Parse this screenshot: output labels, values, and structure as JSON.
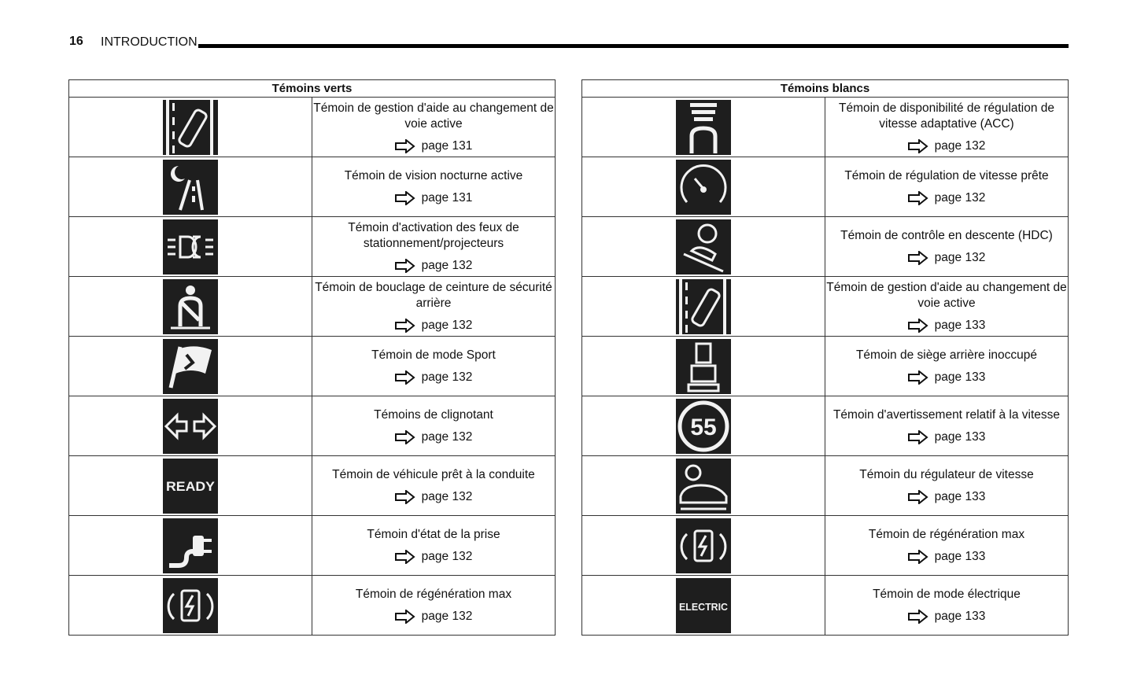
{
  "header": {
    "page_number": "16",
    "section": "INTRODUCTION"
  },
  "tables": [
    {
      "title": "Témoins verts",
      "rows": [
        {
          "icon": "lane-change-assist-icon",
          "text": "Témoin de gestion d'aide au changement de voie active",
          "page": "page 131"
        },
        {
          "icon": "night-vision-icon",
          "text": "Témoin de vision nocturne active",
          "page": "page 131"
        },
        {
          "icon": "parking-lights-icon",
          "text": "Témoin d'activation des feux de stationnement/projecteurs",
          "page": "page 132"
        },
        {
          "icon": "rear-seatbelt-icon",
          "text": "Témoin de bouclage de ceinture de sécurité arrière",
          "page": "page 132"
        },
        {
          "icon": "sport-mode-flag-icon",
          "text": "Témoin de mode Sport",
          "page": "page 132"
        },
        {
          "icon": "turn-signal-icon",
          "text": "Témoins de clignotant",
          "page": "page 132"
        },
        {
          "icon": "ready-icon",
          "label": "READY",
          "text": "Témoin de véhicule prêt à la conduite",
          "page": "page 132"
        },
        {
          "icon": "plug-status-icon",
          "text": "Témoin d'état de la prise",
          "page": "page 132"
        },
        {
          "icon": "max-regeneration-icon",
          "text": "Témoin de régénération max",
          "page": "page 132"
        }
      ]
    },
    {
      "title": "Témoins blancs",
      "rows": [
        {
          "icon": "acc-available-icon",
          "text": "Témoin de disponibilité de régulation de vitesse adaptative (ACC)",
          "page": "page 132"
        },
        {
          "icon": "cruise-ready-icon",
          "text": "Témoin de régulation de vitesse prête",
          "page": "page 132"
        },
        {
          "icon": "hill-descent-control-icon",
          "text": "Témoin de contrôle en descente (HDC)",
          "page": "page 132"
        },
        {
          "icon": "lane-change-assist-icon",
          "text": "Témoin de gestion d'aide au changement de voie active",
          "page": "page 133"
        },
        {
          "icon": "rear-seat-unoccupied-icon",
          "text": "Témoin de siège arrière inoccupé",
          "page": "page 133"
        },
        {
          "icon": "speed-warning-icon",
          "label": "55",
          "text": "Témoin d'avertissement relatif à la vitesse",
          "page": "page 133"
        },
        {
          "icon": "speed-regulator-icon",
          "text": "Témoin du régulateur de vitesse",
          "page": "page 133"
        },
        {
          "icon": "max-regeneration-icon",
          "text": "Témoin de régénération max",
          "page": "page 133"
        },
        {
          "icon": "electric-mode-icon",
          "label": "ELECTRIC",
          "text": "Témoin de mode électrique",
          "page": "page 133"
        }
      ]
    }
  ]
}
